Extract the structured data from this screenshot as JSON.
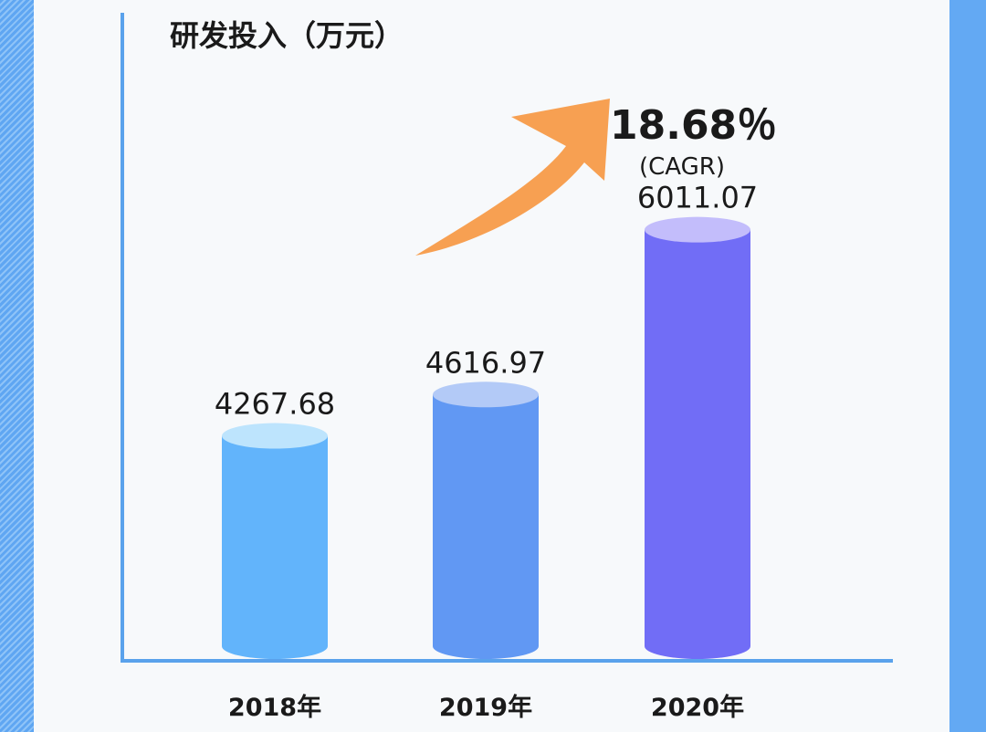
{
  "chart_data": {
    "type": "bar",
    "title": "研发投入（万元）",
    "categories": [
      "2018年",
      "2019年",
      "2020年"
    ],
    "values": [
      4267.68,
      4616.97,
      6011.07
    ],
    "value_labels": [
      "4267.68",
      "4616.97",
      "6011.07"
    ],
    "colors": {
      "bars": [
        "#62b4fb",
        "#6198f3",
        "#716df6"
      ],
      "tops": [
        "#bde4fd",
        "#b3caf7",
        "#c3bdfb"
      ],
      "axis": "#5aa2ec",
      "arrow": "#f7a052"
    },
    "annotation": {
      "value": "18.68％",
      "note": "(CAGR)"
    },
    "bar_shape": "cylinder",
    "grid": false,
    "legend": "none"
  }
}
